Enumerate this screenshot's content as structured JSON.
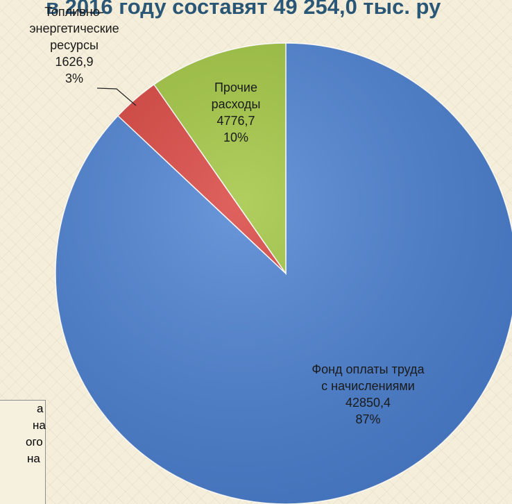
{
  "chart_data": {
    "type": "pie",
    "title": "в 2016 году составят 49 254,0 тыс. ру",
    "categories": [
      "Фонд оплаты труда с начислениями",
      "Топливно-энергетические ресурсы",
      "Прочие расходы"
    ],
    "values": [
      42850.4,
      1626.9,
      4776.7
    ],
    "value_labels": [
      "42850,4",
      "1626,9",
      "4776,7"
    ],
    "percent_labels": [
      "87%",
      "3%",
      "10%"
    ],
    "colors": [
      "#4a80d2",
      "#d8403b",
      "#9fc43c"
    ],
    "annotations": [
      "а",
      "на",
      "ого",
      "на"
    ]
  }
}
